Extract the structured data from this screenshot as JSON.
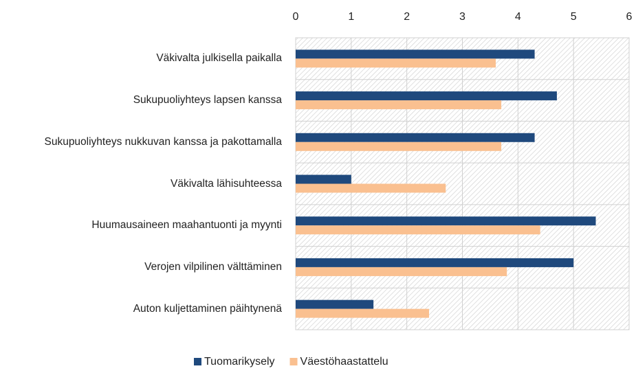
{
  "chart_data": {
    "type": "barh",
    "categories": [
      "Väkivalta julkisella paikalla",
      "Sukupuoliyhteys lapsen kanssa",
      "Sukupuoliyhteys nukkuvan kanssa ja pakottamalla",
      "Väkivalta lähisuhteessa",
      "Huumausaineen maahantuonti ja myynti",
      "Verojen vilpilinen välttäminen",
      "Auton kuljettaminen päihtynenä"
    ],
    "series": [
      {
        "name": "Tuomarikysely",
        "color": "#1f497d",
        "values": [
          4.3,
          4.7,
          4.3,
          1.0,
          5.4,
          5.0,
          1.4
        ]
      },
      {
        "name": "Väestöhaastattelu",
        "color": "#fac090",
        "values": [
          3.6,
          3.7,
          3.7,
          2.7,
          4.4,
          3.8,
          2.4
        ]
      }
    ],
    "xlim": [
      0,
      6
    ],
    "xticks": [
      0,
      1,
      2,
      3,
      4,
      5,
      6
    ],
    "grid": true,
    "legend": "bottom"
  }
}
